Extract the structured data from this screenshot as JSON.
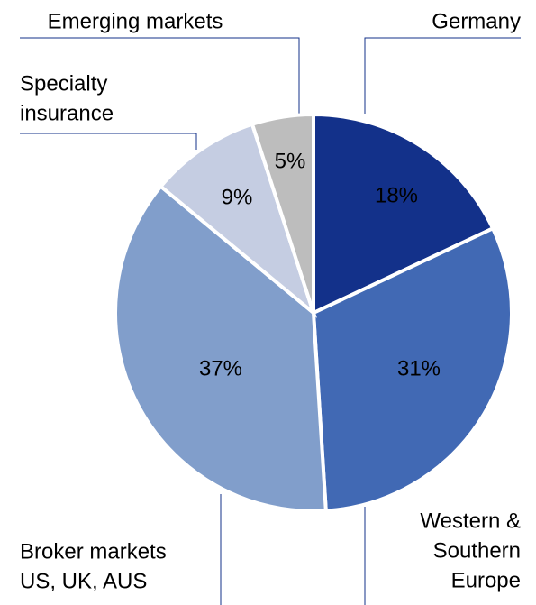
{
  "chart_data": {
    "type": "pie",
    "categories": [
      [
        "Germany"
      ],
      [
        "Western &",
        "Southern",
        "Europe"
      ],
      [
        "Broker markets",
        "US, UK, AUS"
      ],
      [
        "Specialty",
        "insurance"
      ],
      [
        "Emerging markets"
      ]
    ],
    "values": [
      18,
      31,
      37,
      9,
      5
    ],
    "value_labels": [
      "18%",
      "31%",
      "37%",
      "9%",
      "5%"
    ],
    "colors": [
      "#13318a",
      "#4169b4",
      "#819ecb",
      "#c5cde2",
      "#bdbdbd"
    ]
  }
}
